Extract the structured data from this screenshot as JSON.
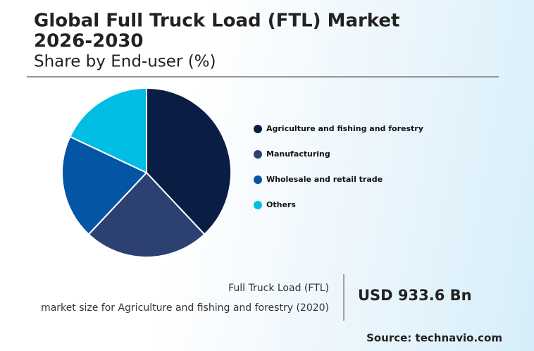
{
  "chart_data": {
    "type": "pie",
    "title_lines": [
      "Global Full Truck Load (FTL) Market",
      "2026-2030"
    ],
    "subtitle": "Share by End-user (%)",
    "categories": [
      "Agriculture and fishing and forestry",
      "Manufacturing",
      "Wholesale and retail trade",
      "Others"
    ],
    "values": [
      38,
      24,
      20,
      18
    ],
    "colors": [
      "#0a1e45",
      "#2c4172",
      "#0455a3",
      "#00bde3"
    ]
  },
  "summary": {
    "label_lines": [
      "Full Truck Load (FTL)",
      "market size for Agriculture and fishing and forestry (2020)"
    ],
    "value": "USD 933.6 Bn",
    "source": "Source: technavio.com"
  }
}
